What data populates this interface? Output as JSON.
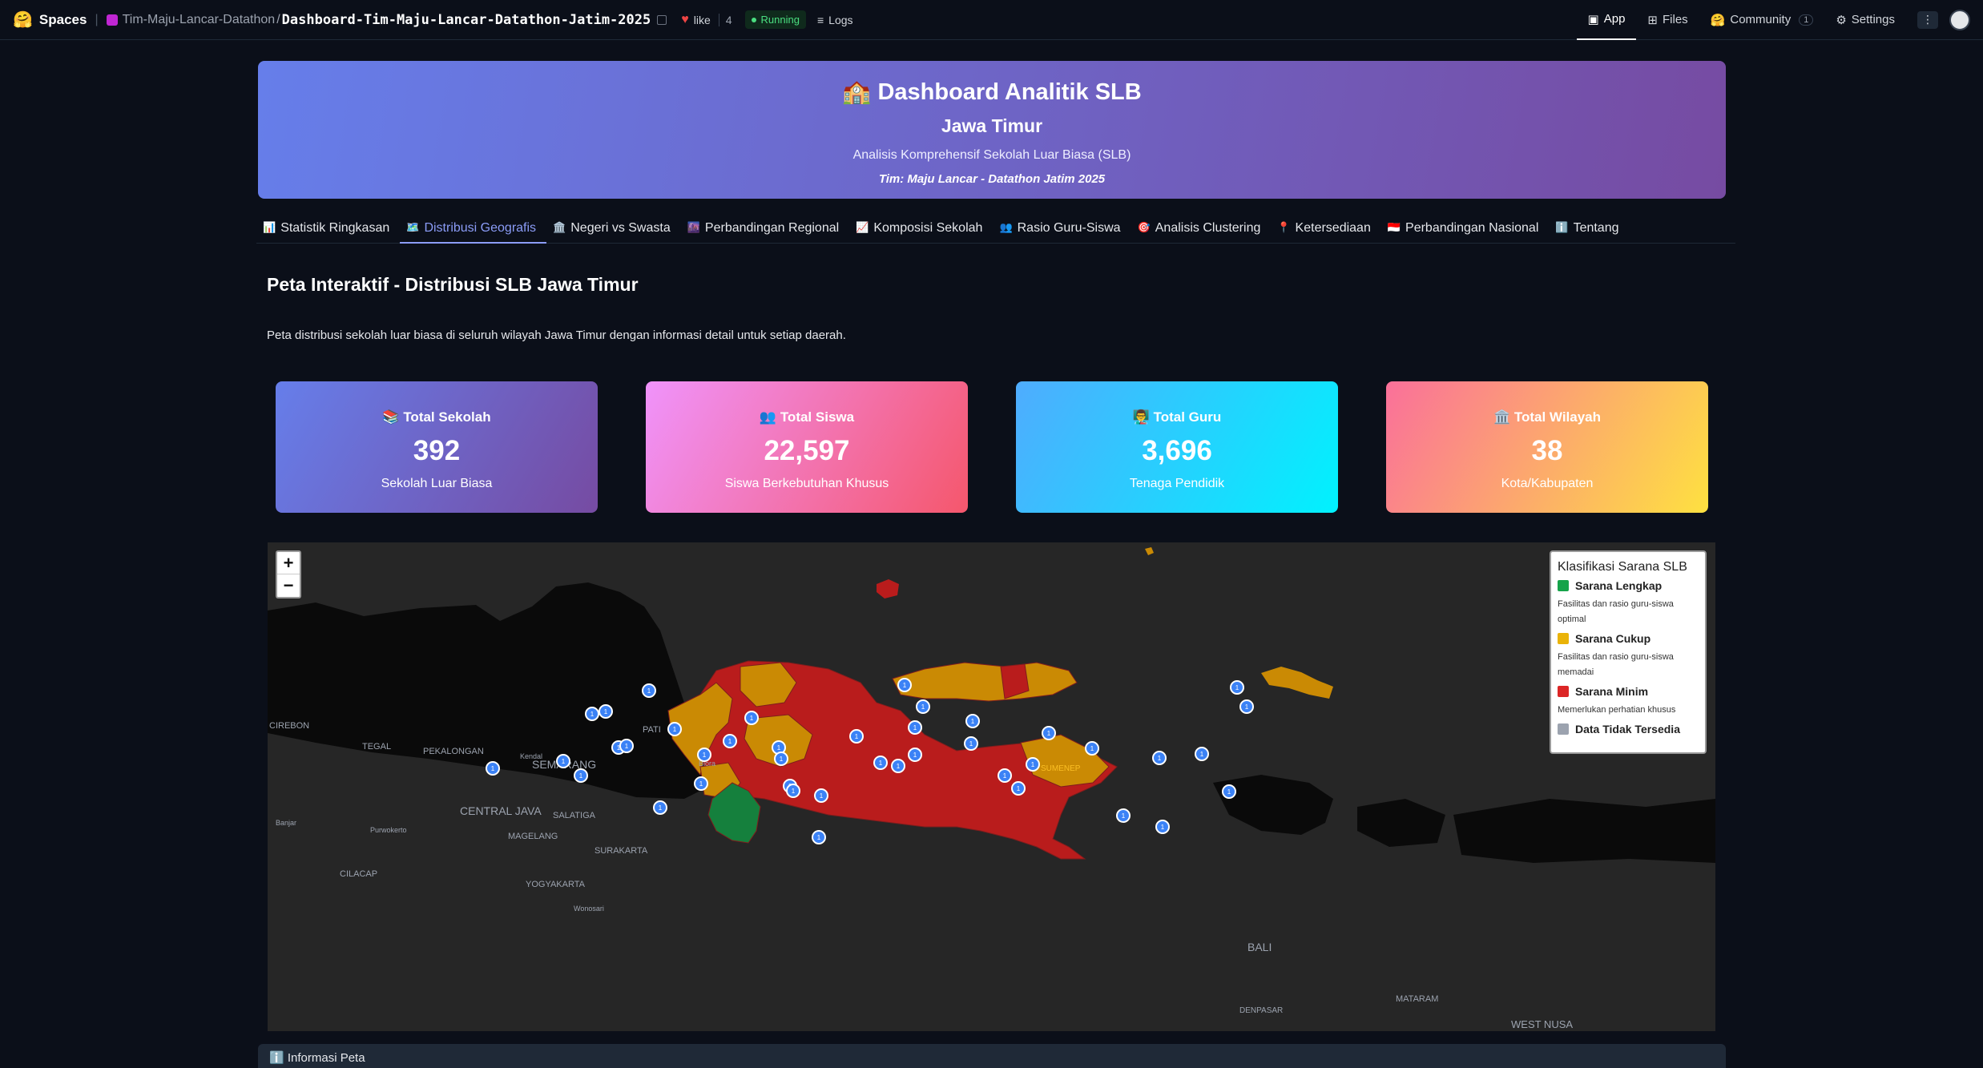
{
  "topbar": {
    "spaces_label": "Spaces",
    "org": "Tim-Maju-Lancar-Datathon",
    "repo": "Dashboard-Tim-Maju-Lancar-Datathon-Jatim-2025",
    "like_label": "like",
    "like_count": "4",
    "status": "Running",
    "logs": "Logs",
    "nav": [
      {
        "label": "App"
      },
      {
        "label": "Files"
      },
      {
        "label": "Community",
        "badge": "1"
      },
      {
        "label": "Settings"
      }
    ]
  },
  "header": {
    "title": "🏫 Dashboard Analitik SLB",
    "subtitle": "Jawa Timur",
    "description": "Analisis Komprehensif Sekolah Luar Biasa (SLB)",
    "team": "Tim: Maju Lancar - Datathon Jatim 2025"
  },
  "tabs": [
    {
      "icon": "📊",
      "label": "Statistik Ringkasan"
    },
    {
      "icon": "🗺️",
      "label": "Distribusi Geografis"
    },
    {
      "icon": "🏛️",
      "label": "Negeri vs Swasta"
    },
    {
      "icon": "🌆",
      "label": "Perbandingan Regional"
    },
    {
      "icon": "📈",
      "label": "Komposisi Sekolah"
    },
    {
      "icon": "👥",
      "label": "Rasio Guru-Siswa"
    },
    {
      "icon": "🎯",
      "label": "Analisis Clustering"
    },
    {
      "icon": "📍",
      "label": "Ketersediaan"
    },
    {
      "icon": "🇮🇩",
      "label": "Perbandingan Nasional"
    },
    {
      "icon": "ℹ️",
      "label": "Tentang"
    }
  ],
  "section": {
    "title": "Peta Interaktif - Distribusi SLB Jawa Timur",
    "description": "Peta distribusi sekolah luar biasa di seluruh wilayah Jawa Timur dengan informasi detail untuk setiap daerah."
  },
  "cards": [
    {
      "icon": "📚",
      "title": "Total Sekolah",
      "value": "392",
      "subtitle": "Sekolah Luar Biasa"
    },
    {
      "icon": "👥",
      "title": "Total Siswa",
      "value": "22,597",
      "subtitle": "Siswa Berkebutuhan Khusus"
    },
    {
      "icon": "👨‍🏫",
      "title": "Total Guru",
      "value": "3,696",
      "subtitle": "Tenaga Pendidik"
    },
    {
      "icon": "🏛️",
      "title": "Total Wilayah",
      "value": "38",
      "subtitle": "Kota/Kabupaten"
    }
  ],
  "map": {
    "zoom_in": "+",
    "zoom_out": "−",
    "place_labels": [
      "CIREBON",
      "TEGAL",
      "PEKALONGAN",
      "SEMARANG",
      "PATI",
      "Blora",
      "Kendal",
      "CENTRAL JAVA",
      "SALATIGA",
      "Banjar",
      "Purwokerto",
      "MAGELANG",
      "SURAKARTA",
      "CILACAP",
      "YOGYAKARTA",
      "Wonosari",
      "BALI",
      "DENPASAR",
      "MATARAM",
      "WEST NUSA",
      "SUMENEP"
    ],
    "marker_label": "1",
    "legend": {
      "title": "Klasifikasi Sarana SLB",
      "items": [
        {
          "label": "Sarana Lengkap",
          "color": "#16a34a",
          "desc": "Fasilitas dan rasio guru-siswa optimal"
        },
        {
          "label": "Sarana Cukup",
          "color": "#eab308",
          "desc": "Fasilitas dan rasio guru-siswa memadai"
        },
        {
          "label": "Sarana Minim",
          "color": "#dc2626",
          "desc": "Memerlukan perhatian khusus"
        },
        {
          "label": "Data Tidak Tersedia",
          "color": "#9ca3af",
          "desc": ""
        }
      ]
    }
  },
  "info_bar": "ℹ️ Informasi Peta"
}
